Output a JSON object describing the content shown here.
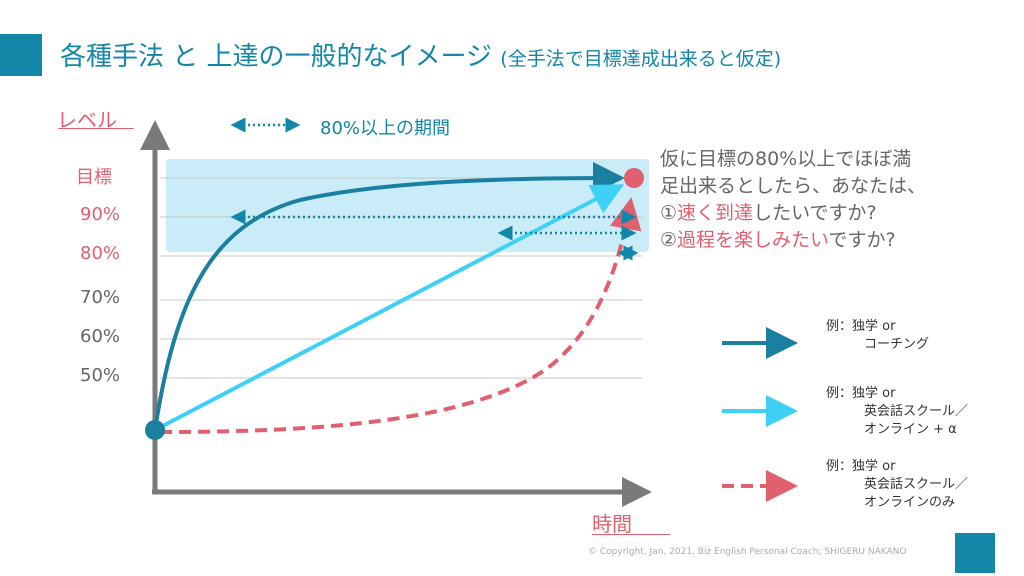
{
  "colors": {
    "accent": "#1287a8",
    "highlight_box": "#c9ecf8",
    "curve_fast": "#1a7fa0",
    "curve_linear": "#3fd0f5",
    "curve_slow": "#e06070",
    "pink_text": "#e06070",
    "gray_text": "#666666",
    "axis": "#7a7a7a"
  },
  "title": {
    "main": "各種手法 と 上達の一般的なイメージ",
    "sub": "(全手法で目標達成出来ると仮定)"
  },
  "y_axis": {
    "label": "レベル",
    "ticks": [
      {
        "label": "目標",
        "color": "#e06070"
      },
      {
        "label": "90%",
        "color": "#e06070"
      },
      {
        "label": "80%",
        "color": "#e06070"
      },
      {
        "label": "70%",
        "color": "#666666"
      },
      {
        "label": "60%",
        "color": "#666666"
      },
      {
        "label": "50%",
        "color": "#666666"
      }
    ]
  },
  "x_axis": {
    "label": "時間"
  },
  "period_legend": "80%以上の期間",
  "question": {
    "line1": "仮に目標の80%以上でほぼ満",
    "line2": "足出来るとしたら、あなたは、",
    "line3_prefix": "①",
    "line3_highlight": "速く到達",
    "line3_suffix": "したいですか?",
    "line4_prefix": "②",
    "line4_highlight": "過程を楽しみたい",
    "line4_suffix": "ですか?"
  },
  "legend": [
    {
      "style": "solid-dark",
      "line1": "例：独学 or",
      "line2": "コーチング",
      "line3": ""
    },
    {
      "style": "solid-light",
      "line1": "例：独学 or",
      "line2": "英会話スクール／",
      "line3": "オンライン + α"
    },
    {
      "style": "dashed-pink",
      "line1": "例：独学 or",
      "line2": "英会話スクール／",
      "line3": "オンラインのみ"
    }
  ],
  "copyright": "© Copyright, Jan, 2021, Biz English Personal Coach; SHIGERU NAKANO"
}
